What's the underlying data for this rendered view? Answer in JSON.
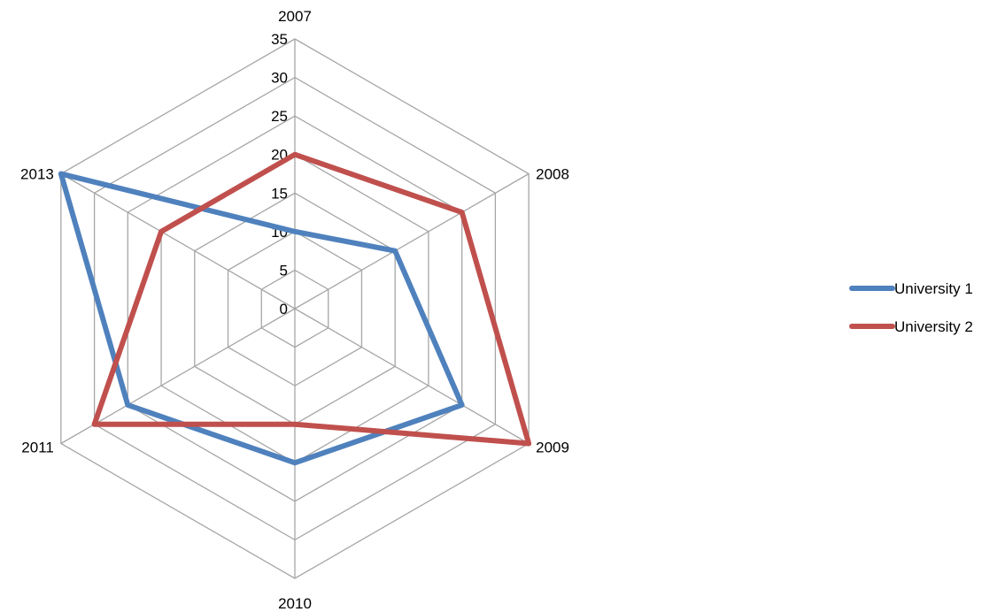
{
  "chart_data": {
    "type": "radar",
    "categories": [
      "2007",
      "2008",
      "2009",
      "2010",
      "2011",
      "2013"
    ],
    "series": [
      {
        "name": "University 1",
        "values": [
          10,
          15,
          25,
          20,
          25,
          35
        ],
        "color": "#4f81bd"
      },
      {
        "name": "University 2",
        "values": [
          20,
          25,
          35,
          15,
          30,
          20
        ],
        "color": "#c0504d"
      }
    ],
    "rlim": [
      0,
      35
    ],
    "ticks": [
      "0",
      "5",
      "10",
      "15",
      "20",
      "25",
      "30",
      "35"
    ],
    "grid": true,
    "legend_position": "right"
  }
}
